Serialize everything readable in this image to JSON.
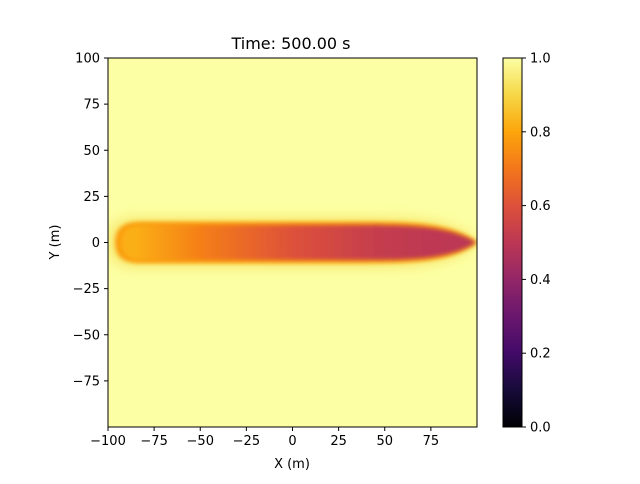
{
  "chart_data": {
    "type": "heatmap",
    "title": "Time: 500.00 s",
    "xlabel": "X (m)",
    "ylabel": "Y (m)",
    "xlim": [
      -100,
      100
    ],
    "ylim": [
      -100,
      100
    ],
    "x_ticks": [
      -100,
      -75,
      -50,
      -25,
      0,
      25,
      50,
      75
    ],
    "x_tick_labels": [
      "−100",
      "−75",
      "−50",
      "−25",
      "0",
      "25",
      "50",
      "75"
    ],
    "y_ticks": [
      100,
      75,
      50,
      25,
      0,
      -25,
      -50,
      -75
    ],
    "y_tick_labels": [
      "100",
      "75",
      "50",
      "25",
      "0",
      "−25",
      "−50",
      "−75"
    ],
    "colormap": "inferno",
    "colorbar": {
      "range": [
        0.0,
        1.0
      ],
      "ticks": [
        0.0,
        0.2,
        0.4,
        0.6,
        0.8,
        1.0
      ],
      "tick_labels": [
        "0.0",
        "0.2",
        "0.4",
        "0.6",
        "0.8",
        "1.0"
      ]
    },
    "background_value": 1.0,
    "plume": {
      "center_y": 0,
      "x_start": -95,
      "x_end": 100,
      "half_width": 11,
      "value_at_x": [
        {
          "x": -85,
          "value": 0.82
        },
        {
          "x": -50,
          "value": 0.72
        },
        {
          "x": 0,
          "value": 0.6
        },
        {
          "x": 50,
          "value": 0.52
        },
        {
          "x": 90,
          "value": 0.5
        }
      ]
    }
  }
}
